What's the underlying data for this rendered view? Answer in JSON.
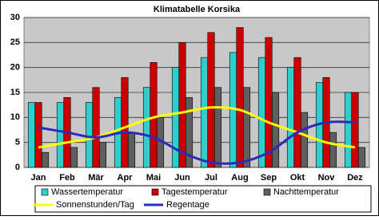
{
  "chart_data": {
    "type": "bar",
    "title": "Klimatabelle Korsika",
    "categories": [
      "Jan",
      "Feb",
      "Mär",
      "Apr",
      "Mai",
      "Jun",
      "Jul",
      "Aug",
      "Sep",
      "Okt",
      "Nov",
      "Dez"
    ],
    "series": [
      {
        "name": "Wassertemperatur",
        "type": "bar",
        "color": "#33cccc",
        "values": [
          13,
          13,
          13,
          14,
          16,
          20,
          22,
          23,
          22,
          20,
          17,
          15
        ]
      },
      {
        "name": "Tagestemperatur",
        "type": "bar",
        "color": "#cc0000",
        "values": [
          13,
          14,
          16,
          18,
          21,
          25,
          27,
          28,
          26,
          22,
          18,
          15
        ]
      },
      {
        "name": "Nachttemperatur",
        "type": "bar",
        "color": "#5f5f5f",
        "values": [
          3,
          4,
          5,
          7,
          10,
          14,
          16,
          16,
          15,
          11,
          7,
          4
        ]
      },
      {
        "name": "Sonnenstunden/Tag",
        "type": "line",
        "color": "#ffff00",
        "values": [
          4,
          5,
          6,
          8,
          10,
          11,
          12,
          11.5,
          9,
          7,
          5,
          4
        ]
      },
      {
        "name": "Regentage",
        "type": "line",
        "color": "#2b2bb8",
        "values": [
          8,
          7,
          6,
          7,
          6,
          3,
          1,
          1,
          3,
          7,
          9,
          9
        ]
      }
    ],
    "ylim": [
      0,
      30
    ],
    "yticks": [
      0,
      5,
      10,
      15,
      20,
      25,
      30
    ],
    "grid": true
  }
}
